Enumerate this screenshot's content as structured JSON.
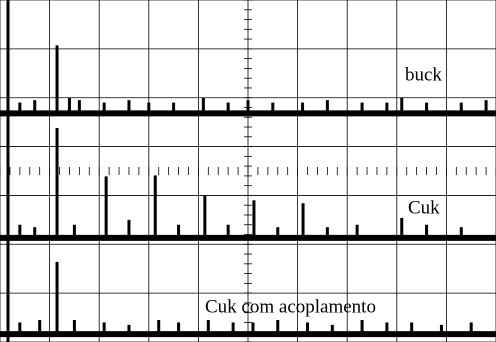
{
  "chart_data": {
    "type": "scope",
    "xlim": [
      0,
      10
    ],
    "ylim": [
      0,
      7
    ],
    "xticks": [
      0,
      1,
      2,
      3,
      4,
      5,
      6,
      7,
      8,
      9,
      10
    ],
    "yticks": [
      0,
      1,
      2,
      3,
      4,
      5,
      6,
      7
    ],
    "grid": true,
    "color": "#000000",
    "series": [
      {
        "name": "buck",
        "baseline": 4.68,
        "x": [
          0.4,
          0.7,
          1.15,
          1.4,
          1.6,
          2.1,
          2.6,
          3.0,
          3.5,
          4.1,
          4.6,
          5.0,
          5.5,
          6.1,
          6.6,
          7.3,
          7.8,
          8.1,
          8.6,
          9.3,
          9.8
        ],
        "values": [
          4.9,
          4.95,
          6.07,
          5.0,
          4.95,
          4.9,
          4.95,
          4.9,
          4.9,
          5.0,
          4.9,
          4.95,
          4.9,
          4.9,
          4.95,
          4.9,
          4.9,
          5.0,
          4.9,
          4.9,
          4.95
        ]
      },
      {
        "name": "Cuk",
        "baseline": 2.13,
        "x": [
          0.4,
          0.7,
          1.15,
          1.5,
          2.14,
          2.6,
          3.13,
          3.6,
          4.13,
          4.6,
          5.12,
          5.6,
          6.11,
          6.6,
          7.2,
          8.1,
          8.6,
          9.3
        ],
        "values": [
          2.4,
          2.35,
          4.38,
          2.4,
          3.39,
          2.5,
          3.41,
          2.4,
          3.0,
          2.4,
          2.9,
          2.35,
          2.84,
          2.35,
          2.4,
          2.54,
          2.4,
          2.35
        ]
      },
      {
        "name": "Cuk com acoplamento",
        "baseline": 0.16,
        "x": [
          0.4,
          0.8,
          1.15,
          1.5,
          2.1,
          2.6,
          3.2,
          3.6,
          4.2,
          4.7,
          5.1,
          5.6,
          6.2,
          6.7,
          7.3,
          7.8,
          8.3,
          8.9,
          9.5
        ],
        "values": [
          0.4,
          0.45,
          1.64,
          0.45,
          0.4,
          0.35,
          0.45,
          0.4,
          0.45,
          0.4,
          0.4,
          0.45,
          0.4,
          0.35,
          0.45,
          0.4,
          0.4,
          0.35,
          0.4
        ]
      }
    ]
  }
}
